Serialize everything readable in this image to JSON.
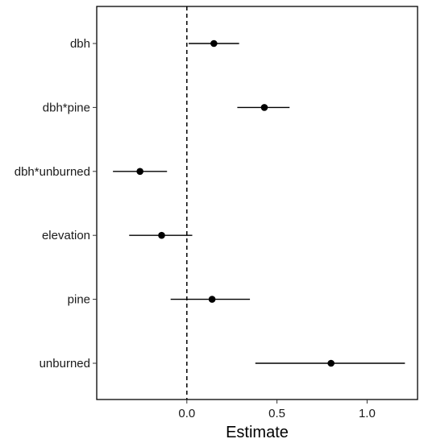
{
  "chart_data": {
    "type": "scatter",
    "title": "",
    "xlabel": "Estimate",
    "ylabel": "",
    "xlim": [
      -0.5,
      1.28
    ],
    "x_ticks": [
      {
        "value": 0.0,
        "label": "0.0"
      },
      {
        "value": 0.5,
        "label": "0.5"
      },
      {
        "value": 1.0,
        "label": "1.0"
      }
    ],
    "reference_line": {
      "x": 0.0,
      "style": "dashed"
    },
    "grid": false,
    "legend": "none",
    "point_color": "#000000",
    "terms": [
      {
        "label": "dbh",
        "estimate": 0.15,
        "lower": 0.01,
        "upper": 0.29
      },
      {
        "label": "dbh*pine",
        "estimate": 0.43,
        "lower": 0.28,
        "upper": 0.57
      },
      {
        "label": "dbh*unburned",
        "estimate": -0.26,
        "lower": -0.41,
        "upper": -0.11
      },
      {
        "label": "elevation",
        "estimate": -0.14,
        "lower": -0.32,
        "upper": 0.03
      },
      {
        "label": "pine",
        "estimate": 0.14,
        "lower": -0.09,
        "upper": 0.35
      },
      {
        "label": "unburned",
        "estimate": 0.8,
        "lower": 0.38,
        "upper": 1.21
      }
    ]
  }
}
